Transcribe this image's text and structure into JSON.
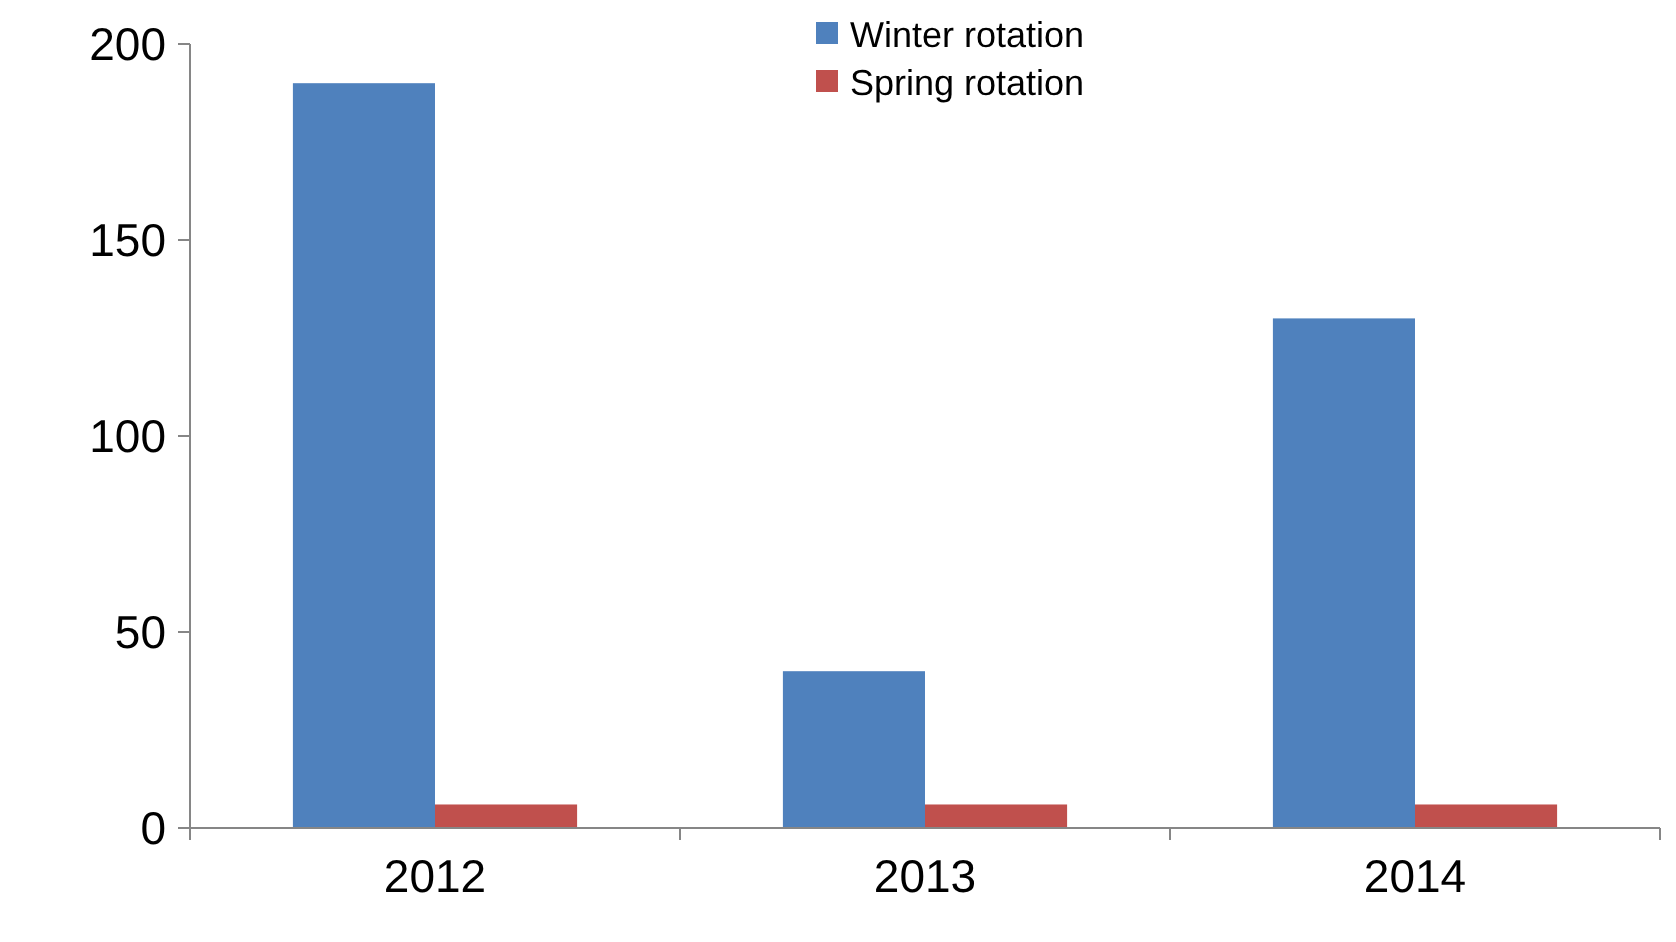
{
  "chart_data": {
    "type": "bar",
    "categories": [
      "2012",
      "2013",
      "2014"
    ],
    "series": [
      {
        "name": "Winter rotation",
        "color": "#4f81bd",
        "values": [
          190,
          40,
          130
        ]
      },
      {
        "name": "Spring rotation",
        "color": "#c0504d",
        "values": [
          6,
          6,
          6
        ]
      }
    ],
    "ylim": [
      0,
      200
    ],
    "yticks": [
      0,
      50,
      100,
      150,
      200
    ],
    "grid": false,
    "legend": "top"
  }
}
